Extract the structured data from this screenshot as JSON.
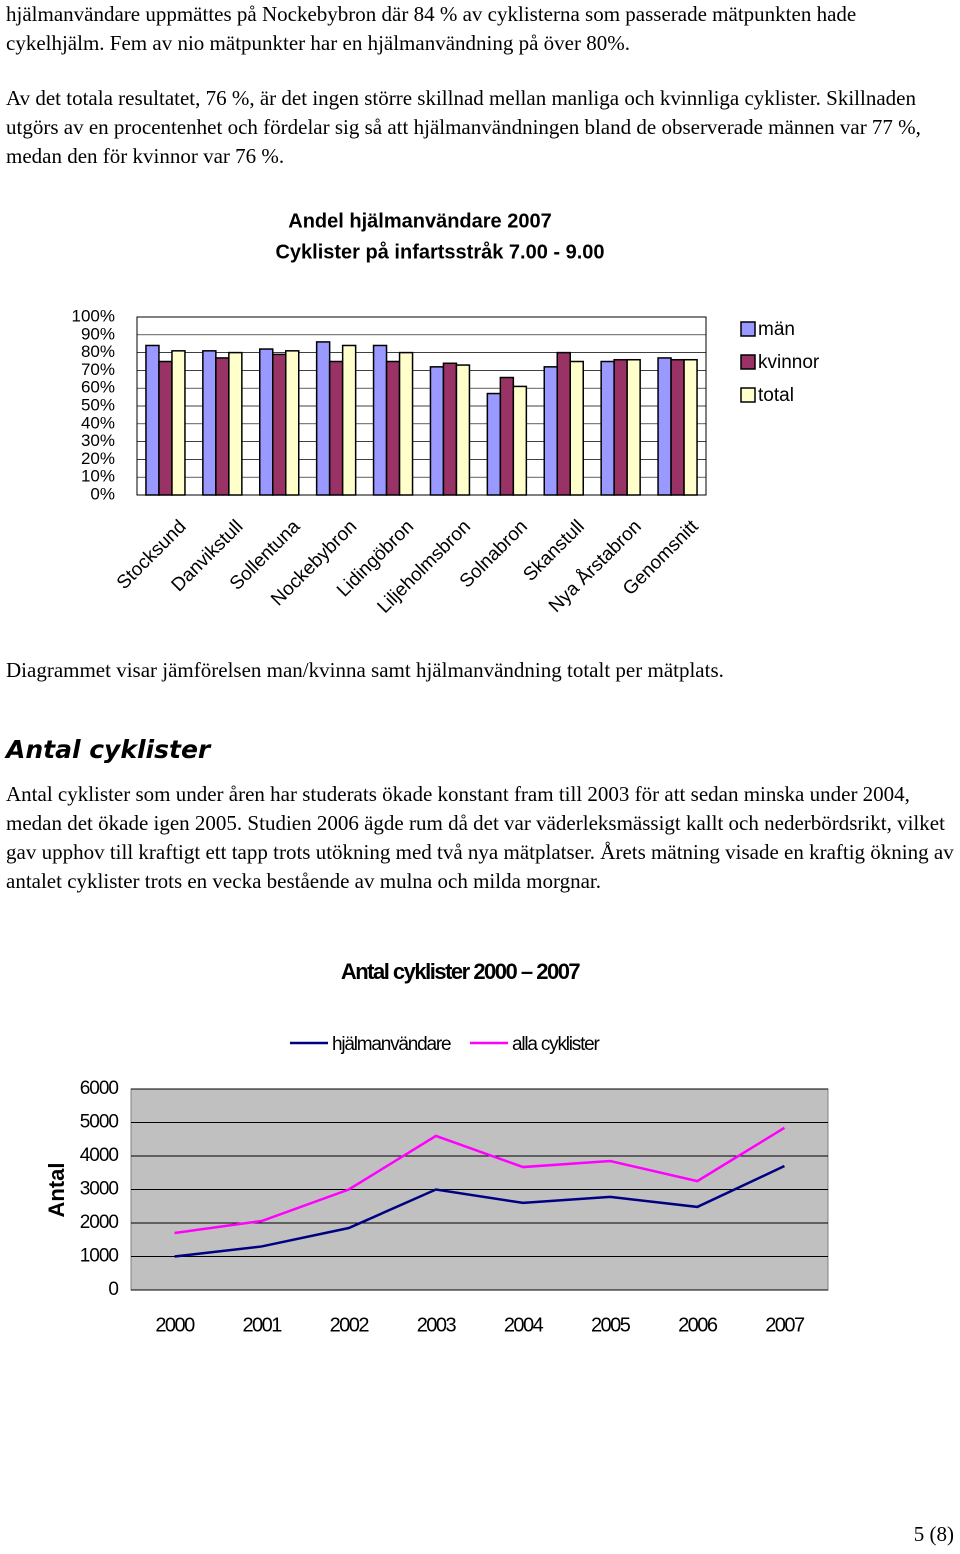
{
  "paragraphs": [
    "hjälmanvändare uppmättes på Nockebybron där 84 % av cyklisterna som passerade mätpunkten hade cykelhjälm. Fem av nio mätpunkter har en hjälmanvändning på över 80%.",
    "Av det totala resultatet, 76 %, är det ingen större skillnad mellan manliga och kvinnliga cyklister. Skillnaden utgörs av en procentenhet och fördelar sig så att hjälmanvändningen bland de observerade männen var 77 %, medan den för kvinnor var 76 %.",
    "Antal cyklister som under åren har studerats ökade konstant fram till 2003 för att sedan minska under 2004, medan det ökade igen 2005. Studien 2006 ägde rum då det var väderleksmässigt kallt och nederbördsrikt, vilket gav upphov till kraftigt ett tapp trots utökning med två nya mätplatser. Årets mätning visade en kraftig ökning av antalet cyklister trots en vecka bestående av mulna och milda morgnar."
  ],
  "caption": "Diagrammet visar jämförelsen man/kvinna samt hjälmanvändning totalt per mätplats.",
  "heading": "Antal cyklister",
  "page_number": "5 (8)",
  "chart_data": [
    {
      "type": "bar",
      "title": "Andel hjälmanvändare 2007",
      "subtitle": "Cyklister på infartsstråk 7.00 - 9.00",
      "categories": [
        "Stocksund",
        "Danvikstull",
        "Sollentuna",
        "Nockebybron",
        "Lidingöbron",
        "Liljeholmsbron",
        "Solnabron",
        "Skanstull",
        "Nya Årstabron",
        "Genomsnitt"
      ],
      "series": [
        {
          "name": "män",
          "color": "#9999ff",
          "values": [
            84,
            81,
            82,
            86,
            84,
            72,
            57,
            72,
            75,
            77
          ]
        },
        {
          "name": "kvinnor",
          "color": "#993366",
          "values": [
            75,
            77,
            79,
            75,
            75,
            74,
            66,
            80,
            76,
            76
          ]
        },
        {
          "name": "total",
          "color": "#ffffcc",
          "values": [
            81,
            80,
            81,
            84,
            80,
            73,
            61,
            75,
            76,
            76
          ]
        }
      ],
      "ylim": [
        0,
        100
      ],
      "yticks": [
        {
          "value": 0,
          "label": "0%"
        },
        {
          "value": 10,
          "label": "10%"
        },
        {
          "value": 20,
          "label": "20%"
        },
        {
          "value": 30,
          "label": "30%"
        },
        {
          "value": 40,
          "label": "40%"
        },
        {
          "value": 50,
          "label": "50%"
        },
        {
          "value": 60,
          "label": "60%"
        },
        {
          "value": 70,
          "label": "70%"
        },
        {
          "value": 80,
          "label": "80%"
        },
        {
          "value": 90,
          "label": "90%"
        },
        {
          "value": 100,
          "label": "100%"
        }
      ],
      "grid": true,
      "legend": "right"
    },
    {
      "type": "line",
      "title": "Antal cyklister 2000 – 2007",
      "ylabel": "Antal",
      "categories": [
        "2000",
        "2001",
        "2002",
        "2003",
        "2004",
        "2005",
        "2006",
        "2007"
      ],
      "series": [
        {
          "name": "hjälmanvändare",
          "color": "#000080",
          "values": [
            1000,
            1300,
            1850,
            3000,
            2600,
            2780,
            2480,
            3700
          ]
        },
        {
          "name": "alla cyklister",
          "color": "#ff00ff",
          "values": [
            1700,
            2060,
            3000,
            4600,
            3670,
            3850,
            3250,
            4840
          ]
        }
      ],
      "ylim": [
        0,
        6000
      ],
      "yticks": [
        0,
        1000,
        2000,
        3000,
        4000,
        5000,
        6000
      ],
      "grid": true,
      "legend": "top",
      "plot_background": "#c0c0c0"
    }
  ]
}
